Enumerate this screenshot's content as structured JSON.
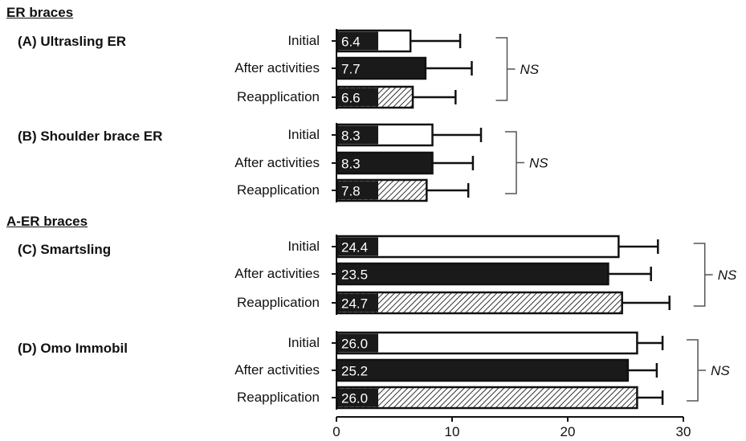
{
  "sections": [
    {
      "label": "ER braces"
    },
    {
      "label": "A-ER braces"
    }
  ],
  "chart_data": {
    "type": "bar",
    "orientation": "horizontal",
    "xlim": [
      0,
      30
    ],
    "xticks": [
      0,
      10,
      20,
      30
    ],
    "categories": [
      "Initial",
      "After activities",
      "Reapplication"
    ],
    "panels": [
      {
        "label": "(A) Ultrasling ER",
        "values": [
          6.4,
          7.7,
          6.6
        ],
        "value_labels": [
          "6.4",
          "7.7",
          "6.6"
        ],
        "errors": [
          4.3,
          4.0,
          3.7
        ],
        "annotation": "NS"
      },
      {
        "label": "(B) Shoulder brace ER",
        "values": [
          8.3,
          8.3,
          7.8
        ],
        "value_labels": [
          "8.3",
          "8.3",
          "7.8"
        ],
        "errors": [
          4.2,
          3.5,
          3.6
        ],
        "annotation": "NS"
      },
      {
        "label": "(C) Smartsling",
        "values": [
          24.4,
          23.5,
          24.7
        ],
        "value_labels": [
          "24.4",
          "23.5",
          "24.7"
        ],
        "errors": [
          3.4,
          3.7,
          4.1
        ],
        "annotation": "NS"
      },
      {
        "label": "(D) Omo Immobil",
        "values": [
          26.0,
          25.2,
          26.0
        ],
        "value_labels": [
          "26.0",
          "25.2",
          "26.0"
        ],
        "errors": [
          2.2,
          2.5,
          2.2
        ],
        "annotation": "NS"
      }
    ],
    "styles": {
      "fill_initial": "#ffffff",
      "fill_after": "#1a1a1a",
      "hatch": "#333333",
      "stroke": "#111111"
    }
  }
}
